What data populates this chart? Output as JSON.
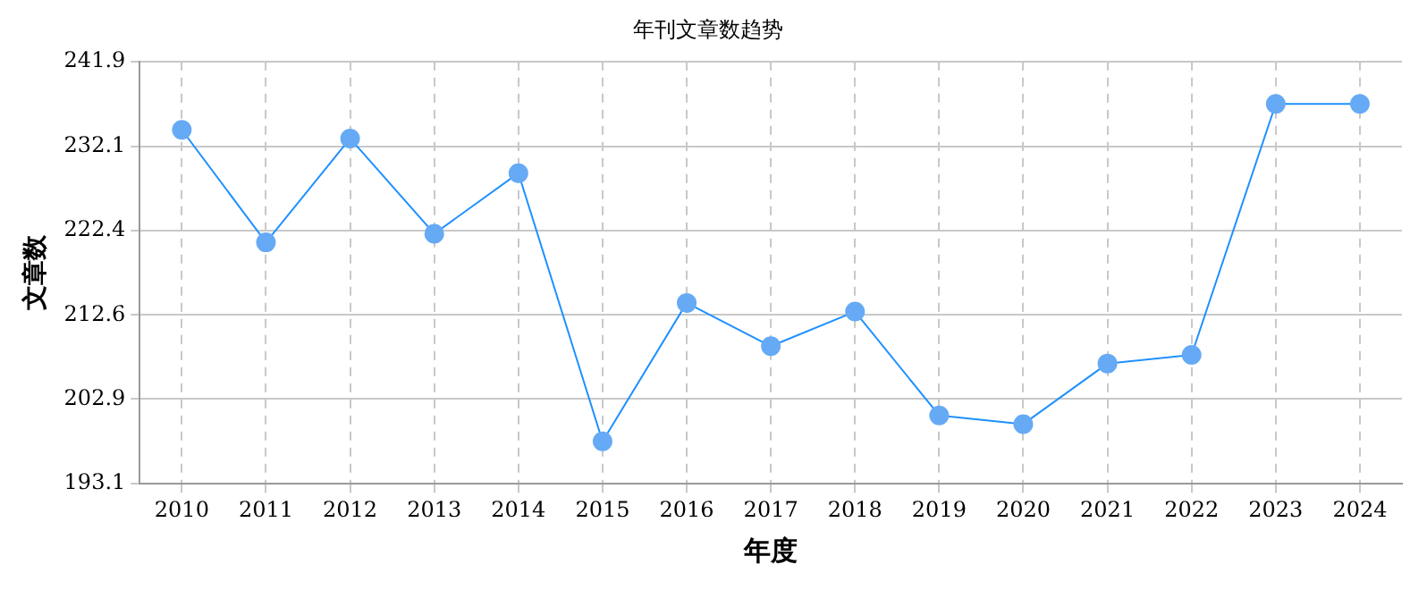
{
  "chart_data": {
    "type": "line",
    "title": "年刊文章数趋势",
    "xlabel": "年度",
    "ylabel": "文章数",
    "categories": [
      "2010",
      "2011",
      "2012",
      "2013",
      "2014",
      "2015",
      "2016",
      "2017",
      "2018",
      "2019",
      "2020",
      "2021",
      "2022",
      "2023",
      "2024"
    ],
    "series": [
      {
        "color": "#1e90ff",
        "values": [
          234,
          221,
          233,
          222,
          229,
          198,
          214,
          209,
          213,
          201,
          200,
          207,
          208,
          237,
          237
        ]
      }
    ],
    "ylim": [
      193.1,
      241.9
    ],
    "yticks": [
      193.1,
      202.9,
      212.6,
      222.4,
      232.1,
      241.9
    ],
    "grid": true,
    "marker": "circle",
    "line_style": "solid",
    "legend": false
  }
}
